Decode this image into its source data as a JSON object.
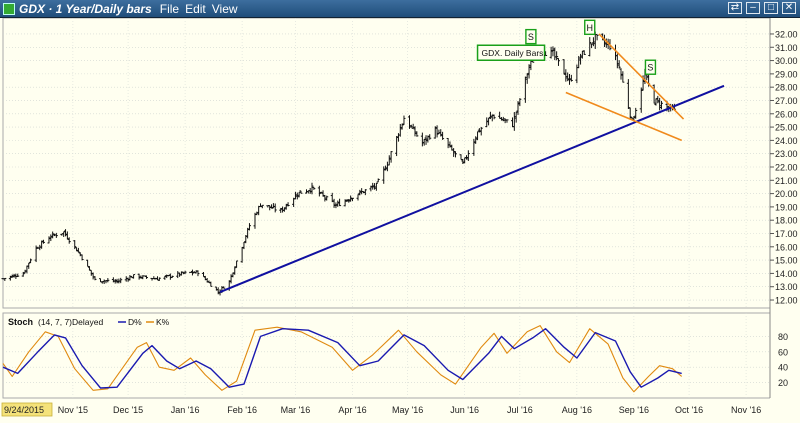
{
  "window": {
    "title": "GDX · 1 Year/Daily bars",
    "menus": [
      "File",
      "Edit",
      "View"
    ],
    "controls": [
      "⇄",
      "–",
      "□",
      "✕"
    ]
  },
  "chart_data": [
    {
      "type": "candlestick",
      "title": "GDX. Daily Bars.",
      "ylim": [
        11.4,
        33.2
      ],
      "y_ticks": [
        "12.00",
        "13.00",
        "14.00",
        "15.00",
        "16.00",
        "17.00",
        "18.00",
        "19.00",
        "20.00",
        "21.00",
        "22.00",
        "23.00",
        "24.00",
        "25.00",
        "26.00",
        "27.00",
        "28.00",
        "29.00",
        "30.00",
        "31.00",
        "32.00"
      ],
      "x_start_label": "9/24/2015",
      "x_ticks": [
        {
          "date": "2015-11-01",
          "label": "Nov '15"
        },
        {
          "date": "2015-12-01",
          "label": "Dec '15"
        },
        {
          "date": "2016-01-01",
          "label": "Jan '16"
        },
        {
          "date": "2016-02-01",
          "label": "Feb '16"
        },
        {
          "date": "2016-03-01",
          "label": "Mar '16"
        },
        {
          "date": "2016-04-01",
          "label": "Apr '16"
        },
        {
          "date": "2016-05-01",
          "label": "May '16"
        },
        {
          "date": "2016-06-01",
          "label": "Jun '16"
        },
        {
          "date": "2016-07-01",
          "label": "Jul '16"
        },
        {
          "date": "2016-08-01",
          "label": "Aug '16"
        },
        {
          "date": "2016-09-01",
          "label": "Sep '16"
        },
        {
          "date": "2016-10-01",
          "label": "Oct '16"
        },
        {
          "date": "2016-11-01",
          "label": "Nov '16"
        }
      ],
      "x_range": [
        "2015-09-24",
        "2016-11-14"
      ],
      "price_path": [
        {
          "date": "2015-09-24",
          "close": 13.6
        },
        {
          "date": "2015-10-05",
          "close": 14.0
        },
        {
          "date": "2015-10-12",
          "close": 15.9
        },
        {
          "date": "2015-10-20",
          "close": 16.8
        },
        {
          "date": "2015-10-27",
          "close": 17.1
        },
        {
          "date": "2015-11-05",
          "close": 15.4
        },
        {
          "date": "2015-11-13",
          "close": 13.5
        },
        {
          "date": "2015-11-25",
          "close": 13.4
        },
        {
          "date": "2015-12-04",
          "close": 13.8
        },
        {
          "date": "2015-12-17",
          "close": 13.6
        },
        {
          "date": "2015-12-31",
          "close": 14.0
        },
        {
          "date": "2016-01-08",
          "close": 14.1
        },
        {
          "date": "2016-01-19",
          "close": 12.6
        },
        {
          "date": "2016-01-25",
          "close": 13.4
        },
        {
          "date": "2016-02-05",
          "close": 17.6
        },
        {
          "date": "2016-02-11",
          "close": 19.2
        },
        {
          "date": "2016-02-22",
          "close": 18.7
        },
        {
          "date": "2016-03-02",
          "close": 20.0
        },
        {
          "date": "2016-03-10",
          "close": 20.4
        },
        {
          "date": "2016-03-23",
          "close": 19.1
        },
        {
          "date": "2016-04-01",
          "close": 19.8
        },
        {
          "date": "2016-04-14",
          "close": 20.6
        },
        {
          "date": "2016-04-20",
          "close": 22.3
        },
        {
          "date": "2016-04-29",
          "close": 25.7
        },
        {
          "date": "2016-05-09",
          "close": 23.8
        },
        {
          "date": "2016-05-16",
          "close": 24.8
        },
        {
          "date": "2016-05-31",
          "close": 22.2
        },
        {
          "date": "2016-06-08",
          "close": 24.6
        },
        {
          "date": "2016-06-16",
          "close": 25.9
        },
        {
          "date": "2016-06-27",
          "close": 25.2
        },
        {
          "date": "2016-07-06",
          "close": 29.5
        },
        {
          "date": "2016-07-11",
          "close": 30.8
        },
        {
          "date": "2016-07-19",
          "close": 30.5
        },
        {
          "date": "2016-07-28",
          "close": 28.4
        },
        {
          "date": "2016-08-03",
          "close": 30.3
        },
        {
          "date": "2016-08-11",
          "close": 31.7
        },
        {
          "date": "2016-08-19",
          "close": 31.1
        },
        {
          "date": "2016-08-24",
          "close": 29.5
        },
        {
          "date": "2016-08-31",
          "close": 25.4
        },
        {
          "date": "2016-09-07",
          "close": 28.9
        },
        {
          "date": "2016-09-12",
          "close": 27.0
        },
        {
          "date": "2016-09-23",
          "close": 26.2
        }
      ],
      "trendlines": [
        {
          "color": "#1010a0",
          "from": {
            "date": "2016-01-20",
            "value": 12.6
          },
          "to": {
            "date": "2016-10-20",
            "value": 28.1
          }
        },
        {
          "color": "#f08a1c",
          "from": {
            "date": "2016-08-13",
            "value": 32.0
          },
          "to": {
            "date": "2016-09-28",
            "value": 25.6
          }
        },
        {
          "color": "#f08a1c",
          "from": {
            "date": "2016-07-26",
            "value": 27.6
          },
          "to": {
            "date": "2016-09-27",
            "value": 24.0
          }
        }
      ],
      "annotations": [
        {
          "text": "S",
          "date": "2016-07-07",
          "value": 31.8
        },
        {
          "text": "H",
          "date": "2016-08-08",
          "value": 32.5
        },
        {
          "text": "S",
          "date": "2016-09-10",
          "value": 29.5
        }
      ],
      "annotation_color": "#1aa01a"
    },
    {
      "type": "line",
      "title": "Stoch",
      "params": "(14, 7, 7)",
      "delay_label": "Delayed",
      "ylim": [
        0,
        100
      ],
      "y_ticks": [
        "20",
        "40",
        "60",
        "80"
      ],
      "series": [
        {
          "name": "D%",
          "color": "#1a1ab0",
          "values": [
            {
              "date": "2015-09-24",
              "v": 40
            },
            {
              "date": "2015-10-02",
              "v": 32
            },
            {
              "date": "2015-10-13",
              "v": 60
            },
            {
              "date": "2015-10-22",
              "v": 82
            },
            {
              "date": "2015-10-28",
              "v": 78
            },
            {
              "date": "2015-11-06",
              "v": 42
            },
            {
              "date": "2015-11-16",
              "v": 13
            },
            {
              "date": "2015-11-25",
              "v": 14
            },
            {
              "date": "2015-12-09",
              "v": 58
            },
            {
              "date": "2015-12-14",
              "v": 68
            },
            {
              "date": "2015-12-22",
              "v": 48
            },
            {
              "date": "2015-12-29",
              "v": 38
            },
            {
              "date": "2016-01-07",
              "v": 48
            },
            {
              "date": "2016-01-15",
              "v": 38
            },
            {
              "date": "2016-01-25",
              "v": 14
            },
            {
              "date": "2016-02-02",
              "v": 18
            },
            {
              "date": "2016-02-11",
              "v": 80
            },
            {
              "date": "2016-02-23",
              "v": 90
            },
            {
              "date": "2016-03-08",
              "v": 88
            },
            {
              "date": "2016-03-24",
              "v": 72
            },
            {
              "date": "2016-04-05",
              "v": 42
            },
            {
              "date": "2016-04-15",
              "v": 48
            },
            {
              "date": "2016-04-29",
              "v": 82
            },
            {
              "date": "2016-05-10",
              "v": 68
            },
            {
              "date": "2016-05-23",
              "v": 36
            },
            {
              "date": "2016-05-31",
              "v": 24
            },
            {
              "date": "2016-06-14",
              "v": 58
            },
            {
              "date": "2016-06-21",
              "v": 80
            },
            {
              "date": "2016-06-28",
              "v": 64
            },
            {
              "date": "2016-07-08",
              "v": 78
            },
            {
              "date": "2016-07-15",
              "v": 90
            },
            {
              "date": "2016-07-25",
              "v": 66
            },
            {
              "date": "2016-08-01",
              "v": 52
            },
            {
              "date": "2016-08-11",
              "v": 85
            },
            {
              "date": "2016-08-22",
              "v": 74
            },
            {
              "date": "2016-08-30",
              "v": 34
            },
            {
              "date": "2016-09-05",
              "v": 14
            },
            {
              "date": "2016-09-14",
              "v": 26
            },
            {
              "date": "2016-09-20",
              "v": 36
            },
            {
              "date": "2016-09-27",
              "v": 32
            }
          ]
        },
        {
          "name": "K%",
          "color": "#e08a10",
          "values": [
            {
              "date": "2015-09-24",
              "v": 45
            },
            {
              "date": "2015-09-29",
              "v": 28
            },
            {
              "date": "2015-10-08",
              "v": 60
            },
            {
              "date": "2015-10-17",
              "v": 86
            },
            {
              "date": "2015-10-24",
              "v": 80
            },
            {
              "date": "2015-11-02",
              "v": 38
            },
            {
              "date": "2015-11-12",
              "v": 10
            },
            {
              "date": "2015-11-20",
              "v": 12
            },
            {
              "date": "2015-12-06",
              "v": 66
            },
            {
              "date": "2015-12-11",
              "v": 72
            },
            {
              "date": "2015-12-18",
              "v": 40
            },
            {
              "date": "2015-12-26",
              "v": 36
            },
            {
              "date": "2016-01-04",
              "v": 52
            },
            {
              "date": "2016-01-12",
              "v": 30
            },
            {
              "date": "2016-01-21",
              "v": 10
            },
            {
              "date": "2016-01-29",
              "v": 22
            },
            {
              "date": "2016-02-08",
              "v": 88
            },
            {
              "date": "2016-02-20",
              "v": 92
            },
            {
              "date": "2016-03-04",
              "v": 86
            },
            {
              "date": "2016-03-21",
              "v": 66
            },
            {
              "date": "2016-04-01",
              "v": 36
            },
            {
              "date": "2016-04-12",
              "v": 56
            },
            {
              "date": "2016-04-26",
              "v": 88
            },
            {
              "date": "2016-05-06",
              "v": 60
            },
            {
              "date": "2016-05-19",
              "v": 30
            },
            {
              "date": "2016-05-27",
              "v": 18
            },
            {
              "date": "2016-06-10",
              "v": 66
            },
            {
              "date": "2016-06-17",
              "v": 84
            },
            {
              "date": "2016-06-24",
              "v": 58
            },
            {
              "date": "2016-07-05",
              "v": 86
            },
            {
              "date": "2016-07-12",
              "v": 94
            },
            {
              "date": "2016-07-21",
              "v": 60
            },
            {
              "date": "2016-07-28",
              "v": 46
            },
            {
              "date": "2016-08-08",
              "v": 90
            },
            {
              "date": "2016-08-18",
              "v": 70
            },
            {
              "date": "2016-08-26",
              "v": 26
            },
            {
              "date": "2016-09-01",
              "v": 8
            },
            {
              "date": "2016-09-09",
              "v": 28
            },
            {
              "date": "2016-09-15",
              "v": 42
            },
            {
              "date": "2016-09-22",
              "v": 38
            },
            {
              "date": "2016-09-27",
              "v": 28
            }
          ]
        }
      ]
    }
  ]
}
